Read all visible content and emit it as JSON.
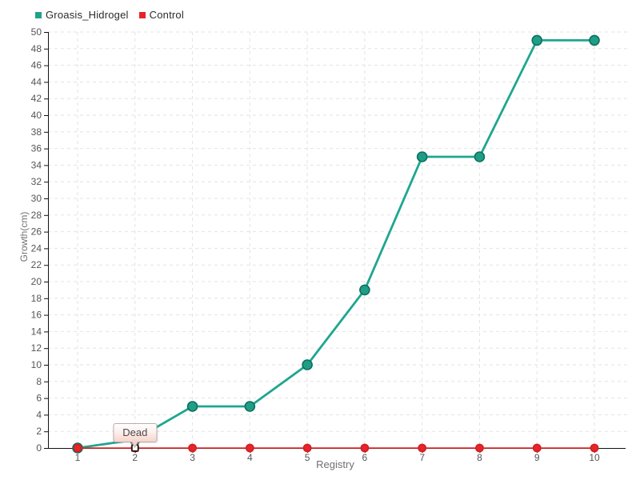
{
  "legend": {
    "items": [
      {
        "label": "Groasis_Hidrogel",
        "color": "#1fa18a"
      },
      {
        "label": "Control",
        "color": "#e52528"
      }
    ]
  },
  "chart_data": {
    "type": "line",
    "x": [
      1,
      2,
      3,
      4,
      5,
      6,
      7,
      8,
      9,
      10
    ],
    "series": [
      {
        "name": "Groasis_Hidrogel",
        "values": [
          0,
          1,
          5,
          5,
          10,
          19,
          35,
          35,
          49,
          49
        ],
        "line_color": "#1ea690",
        "line_width": 2.8,
        "marker_fill": "#1f9e86",
        "marker_stroke": "#0e6f5e",
        "marker_radius": 6
      },
      {
        "name": "Control",
        "values": [
          0,
          0,
          0,
          0,
          0,
          0,
          0,
          0,
          0,
          0
        ],
        "line_color": "#e52528",
        "line_width": 1.6,
        "marker_fill": "#e52528",
        "marker_stroke": "#d21f24",
        "marker_radius": 4.6
      }
    ],
    "xlabel": "Registry",
    "ylabel": "Growth(cm)",
    "ylim": [
      0,
      50
    ],
    "ytick_step": 2,
    "grid": true,
    "legend_position": "top-left",
    "annotation": {
      "label": "Dead",
      "series": "Control",
      "x": 2,
      "y": 0
    }
  },
  "style": {
    "grid_color": "#e3e3e3",
    "axis_color": "#111111",
    "tick_text_color": "#555555",
    "axis_title_color": "#707070",
    "legend_text_color": "#2b2b2b",
    "tooltip_border": "#b8aeac",
    "tooltip_pink": "#f7d3cc",
    "selected_point_fill": "#ffffff",
    "selected_point_stroke": "#111111"
  }
}
